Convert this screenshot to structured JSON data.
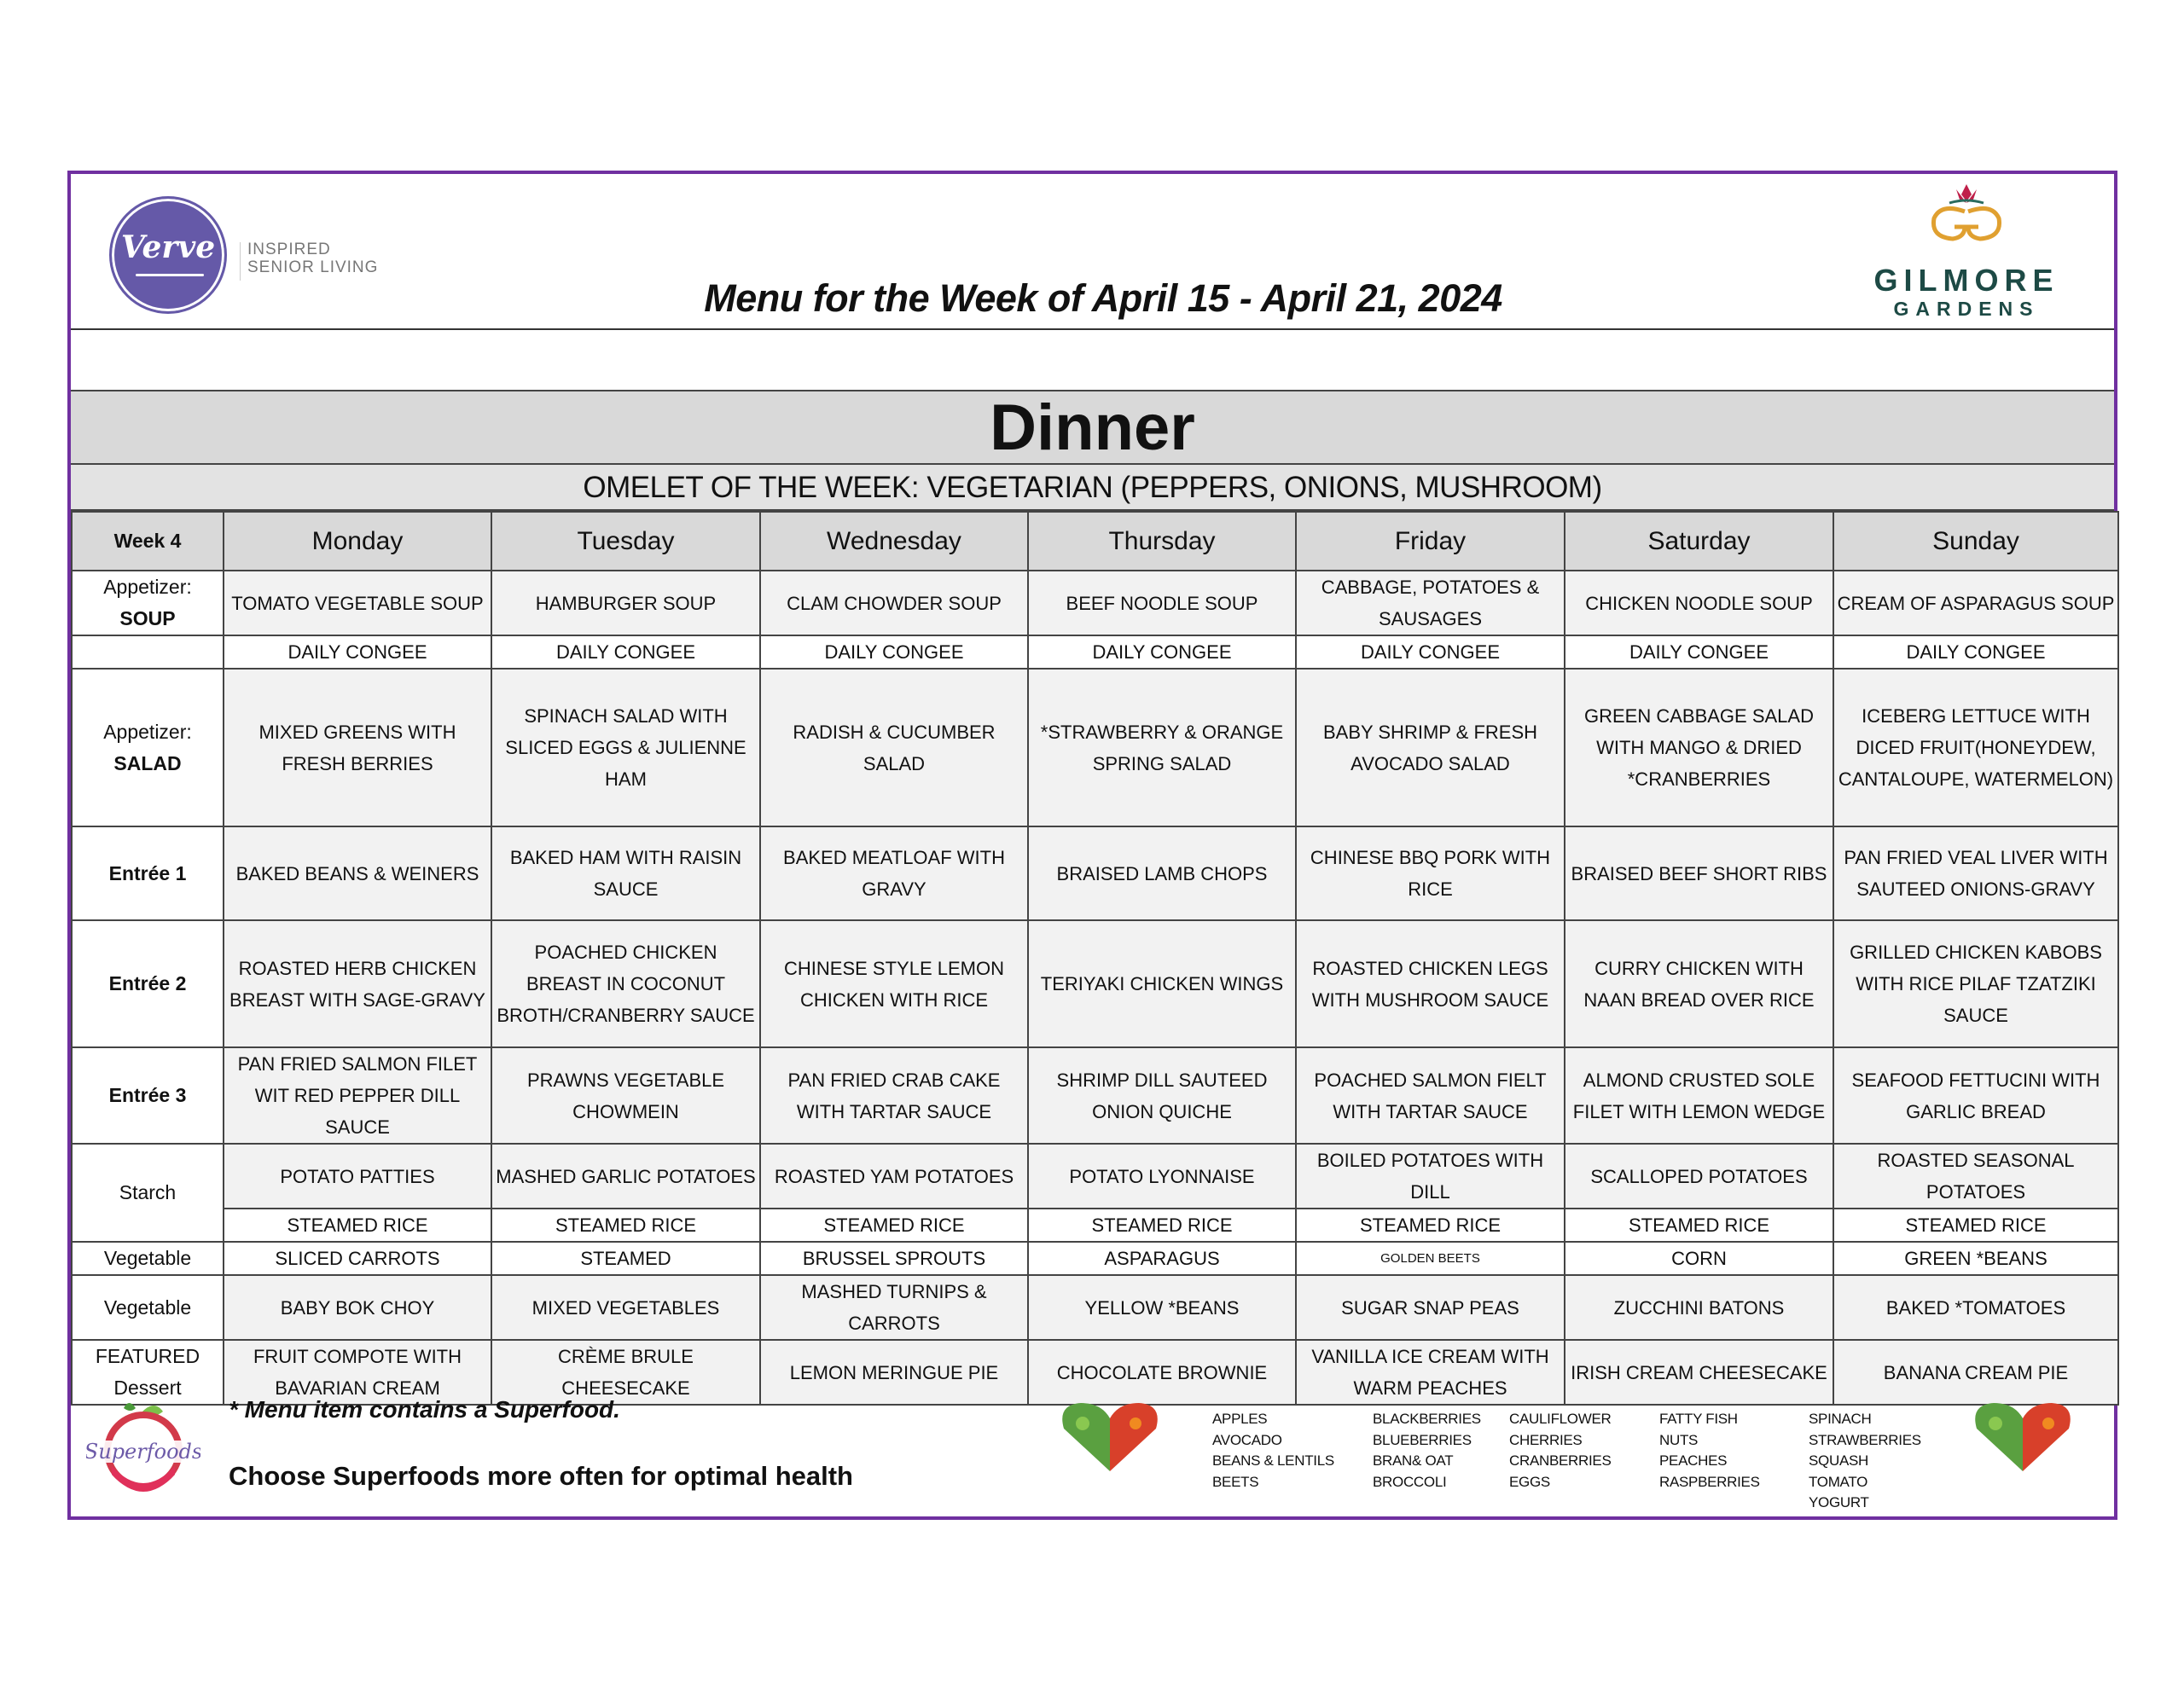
{
  "header": {
    "title": "Menu for the Week of April 15 - April 21, 2024",
    "left_logo": {
      "name": "Verve",
      "tagline_1": "INSPIRED",
      "tagline_2": "SENIOR LIVING"
    },
    "right_logo": {
      "name": "GILMORE",
      "sub": "GARDENS"
    }
  },
  "meal": "Dinner",
  "omelet": "OMELET OF THE WEEK: VEGETARIAN (PEPPERS, ONIONS, MUSHROOM)",
  "table": {
    "week_label": "Week 4",
    "days": [
      "Monday",
      "Tuesday",
      "Wednesday",
      "Thursday",
      "Friday",
      "Saturday",
      "Sunday"
    ],
    "rows": [
      {
        "label1": "Appetizer:",
        "label2": "SOUP",
        "cells": [
          "TOMATO VEGETABLE SOUP",
          "HAMBURGER SOUP",
          "CLAM CHOWDER SOUP",
          "BEEF NOODLE SOUP",
          "CABBAGE, POTATOES & SAUSAGES",
          "CHICKEN NOODLE SOUP",
          "CREAM OF ASPARAGUS SOUP"
        ]
      },
      {
        "label1": "",
        "label2": "",
        "cells": [
          "DAILY CONGEE",
          "DAILY CONGEE",
          "DAILY CONGEE",
          "DAILY CONGEE",
          "DAILY CONGEE",
          "DAILY CONGEE",
          "DAILY CONGEE"
        ]
      },
      {
        "label1": "Appetizer:",
        "label2": "SALAD",
        "cells": [
          "MIXED GREENS WITH FRESH BERRIES",
          "SPINACH SALAD WITH SLICED EGGS & JULIENNE HAM",
          "RADISH & CUCUMBER SALAD",
          "*STRAWBERRY & ORANGE  SPRING SALAD",
          "BABY SHRIMP & FRESH AVOCADO SALAD",
          "GREEN CABBAGE SALAD WITH MANGO & DRIED *CRANBERRIES",
          "ICEBERG LETTUCE WITH DICED FRUIT(HONEYDEW, CANTALOUPE, WATERMELON)"
        ]
      },
      {
        "label1": "",
        "label2": "Entrée 1",
        "cells": [
          "BAKED BEANS & WEINERS",
          "BAKED HAM WITH RAISIN SAUCE",
          "BAKED MEATLOAF WITH GRAVY",
          "BRAISED LAMB CHOPS",
          "CHINESE BBQ PORK WITH RICE",
          "BRAISED BEEF SHORT RIBS",
          "PAN FRIED VEAL LIVER WITH SAUTEED ONIONS-GRAVY"
        ]
      },
      {
        "label1": "",
        "label2": "Entrée 2",
        "cells": [
          "ROASTED HERB CHICKEN BREAST WITH SAGE-GRAVY",
          "POACHED CHICKEN BREAST IN COCONUT BROTH/CRANBERRY SAUCE",
          "CHINESE STYLE LEMON CHICKEN WITH RICE",
          "TERIYAKI CHICKEN WINGS",
          "ROASTED CHICKEN LEGS WITH MUSHROOM SAUCE",
          "CURRY CHICKEN WITH NAAN BREAD OVER RICE",
          "GRILLED CHICKEN KABOBS WITH RICE PILAF TZATZIKI SAUCE"
        ]
      },
      {
        "label1": "",
        "label2": "Entrée 3",
        "cells": [
          "PAN FRIED SALMON FILET WIT RED PEPPER DILL SAUCE",
          "PRAWNS VEGETABLE CHOWMEIN",
          "PAN FRIED CRAB CAKE WITH TARTAR SAUCE",
          "SHRIMP DILL SAUTEED ONION QUICHE",
          "POACHED SALMON FIELT WITH TARTAR SAUCE",
          "ALMOND CRUSTED SOLE FILET WITH LEMON WEDGE",
          "SEAFOOD FETTUCINI WITH GARLIC BREAD"
        ]
      },
      {
        "label1": "Starch",
        "label2": "",
        "cells": [
          "POTATO PATTIES",
          "MASHED GARLIC POTATOES",
          "ROASTED YAM POTATOES",
          "POTATO LYONNAISE",
          "BOILED POTATOES WITH DILL",
          "SCALLOPED POTATOES",
          "ROASTED SEASONAL POTATOES"
        ]
      },
      {
        "label1": "",
        "label2": "",
        "cells": [
          "STEAMED RICE",
          "STEAMED RICE",
          "STEAMED RICE",
          "STEAMED RICE",
          "STEAMED RICE",
          "STEAMED RICE",
          "STEAMED RICE"
        ]
      },
      {
        "label1": "Vegetable",
        "label2": "",
        "cells": [
          "SLICED CARROTS",
          "STEAMED",
          "BRUSSEL SPROUTS",
          "ASPARAGUS",
          "GOLDEN BEETS",
          "CORN",
          "GREEN *BEANS"
        ]
      },
      {
        "label1": "Vegetable",
        "label2": "",
        "cells": [
          "BABY BOK CHOY",
          "MIXED VEGETABLES",
          "MASHED TURNIPS & CARROTS",
          "YELLOW *BEANS",
          "SUGAR SNAP PEAS",
          "ZUCCHINI BATONS",
          "BAKED *TOMATOES"
        ]
      },
      {
        "label1": "FEATURED",
        "label2": "Dessert",
        "cells": [
          "FRUIT COMPOTE WITH BAVARIAN CREAM",
          "CRÈME BRULE CHEESECAKE",
          "LEMON MERINGUE PIE",
          "CHOCOLATE BROWNIE",
          "VANILLA ICE CREAM WITH WARM PEACHES",
          "IRISH CREAM CHEESECAKE",
          "BANANA CREAM PIE"
        ]
      }
    ]
  },
  "footer": {
    "logo": "Superfoods",
    "note": "* Menu item contains a Superfood.",
    "tagline": "Choose Superfoods more often for optimal health",
    "superfoods": [
      [
        "APPLES",
        "AVOCADO",
        "BEANS & LENTILS",
        "BEETS"
      ],
      [
        "BLACKBERRIES",
        "BLUEBERRIES",
        "BRAN& OAT",
        "BROCCOLI"
      ],
      [
        "CAULIFLOWER",
        "CHERRIES",
        "CRANBERRIES",
        "EGGS"
      ],
      [
        "FATTY FISH",
        "NUTS",
        "PEACHES",
        "RASPBERRIES"
      ],
      [
        "SPINACH",
        "STRAWBERRIES",
        "SQUASH",
        "TOMATO",
        "YOGURT"
      ]
    ]
  },
  "colors": {
    "frame": "#7030a0",
    "header_gray": "#d9d9d9",
    "verve_purple": "#6559a8",
    "gilmore_green": "#1d4a45",
    "gilmore_gold": "#e0a030"
  }
}
